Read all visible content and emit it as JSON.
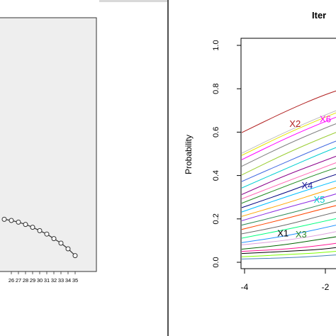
{
  "chart_data": [
    {
      "type": "line",
      "panel": "left",
      "title": "",
      "xlabel": "",
      "ylabel": "",
      "grid": false,
      "background": "#eeeeee",
      "x_tick_labels": [
        "26",
        "27",
        "28",
        "29",
        "30",
        "31",
        "32",
        "33",
        "34",
        "35"
      ],
      "series": [
        {
          "color": "#333333",
          "marker": "open-circle",
          "x": [
            25,
            26,
            27,
            28,
            29,
            30,
            31,
            32,
            33,
            34,
            35
          ],
          "y": [
            0.92,
            0.9,
            0.87,
            0.83,
            0.78,
            0.72,
            0.66,
            0.58,
            0.5,
            0.4,
            0.28
          ]
        }
      ]
    },
    {
      "type": "line",
      "panel": "right",
      "title": "Iter",
      "xlabel": "",
      "ylabel": "Probability",
      "xlim": [
        -4.3,
        0
      ],
      "ylim": [
        -0.02,
        1.05
      ],
      "x_ticks": [
        -4,
        -2
      ],
      "y_ticks": [
        "0.0",
        "0.2",
        "0.4",
        "0.6",
        "0.8",
        "1.0"
      ],
      "grid": false,
      "series_colors": [
        "#b22222",
        "#e6e600",
        "#c0c0c0",
        "#ff00ff",
        "#808080",
        "#9acd32",
        "#4169e1",
        "#00ced1",
        "#8b008b",
        "#ff69b4",
        "#228b22",
        "#000080",
        "#00bfff",
        "#ffa500",
        "#8a2be2",
        "#2e8b57",
        "#ff4500",
        "#696969",
        "#00ff7f",
        "#1e90ff",
        "#dda0dd",
        "#006400",
        "#ff1493",
        "#000000",
        "#7fff00",
        "#4682b4"
      ],
      "series": [
        {
          "x": [
            -4.1,
            -3,
            -2,
            -1.3
          ],
          "y": [
            0.595,
            0.695,
            0.775,
            0.815
          ]
        },
        {
          "x": [
            -4.1,
            -3,
            -2,
            -1.3
          ],
          "y": [
            0.49,
            0.59,
            0.67,
            0.72
          ]
        },
        {
          "x": [
            -4.1,
            -3,
            -2,
            -1.3
          ],
          "y": [
            0.5,
            0.6,
            0.68,
            0.73
          ]
        },
        {
          "x": [
            -4.1,
            -3,
            -2,
            -1.3
          ],
          "y": [
            0.47,
            0.57,
            0.65,
            0.7
          ]
        },
        {
          "x": [
            -4.1,
            -3,
            -2,
            -1.3
          ],
          "y": [
            0.44,
            0.54,
            0.62,
            0.67
          ]
        },
        {
          "x": [
            -4.1,
            -3,
            -2,
            -1.3
          ],
          "y": [
            0.4,
            0.5,
            0.58,
            0.63
          ]
        },
        {
          "x": [
            -4.1,
            -3,
            -2,
            -1.3
          ],
          "y": [
            0.37,
            0.46,
            0.54,
            0.59
          ]
        },
        {
          "x": [
            -4.1,
            -3,
            -2,
            -1.3
          ],
          "y": [
            0.34,
            0.43,
            0.51,
            0.56
          ]
        },
        {
          "x": [
            -4.1,
            -3,
            -2,
            -1.3
          ],
          "y": [
            0.31,
            0.4,
            0.47,
            0.52
          ]
        },
        {
          "x": [
            -4.1,
            -3,
            -2,
            -1.3
          ],
          "y": [
            0.29,
            0.37,
            0.44,
            0.49
          ]
        },
        {
          "x": [
            -4.1,
            -3,
            -2,
            -1.3
          ],
          "y": [
            0.27,
            0.35,
            0.42,
            0.46
          ]
        },
        {
          "x": [
            -4.1,
            -3,
            -2,
            -1.3
          ],
          "y": [
            0.25,
            0.32,
            0.39,
            0.43
          ]
        },
        {
          "x": [
            -4.1,
            -3,
            -2,
            -1.3
          ],
          "y": [
            0.23,
            0.3,
            0.36,
            0.4
          ]
        },
        {
          "x": [
            -4.1,
            -3,
            -2,
            -1.3
          ],
          "y": [
            0.21,
            0.27,
            0.33,
            0.37
          ]
        },
        {
          "x": [
            -4.1,
            -3,
            -2,
            -1.3
          ],
          "y": [
            0.19,
            0.25,
            0.3,
            0.34
          ]
        },
        {
          "x": [
            -4.1,
            -3,
            -2,
            -1.3
          ],
          "y": [
            0.17,
            0.22,
            0.27,
            0.31
          ]
        },
        {
          "x": [
            -4.1,
            -3,
            -2,
            -1.3
          ],
          "y": [
            0.15,
            0.2,
            0.25,
            0.28
          ]
        },
        {
          "x": [
            -4.1,
            -3,
            -2,
            -1.3
          ],
          "y": [
            0.13,
            0.17,
            0.22,
            0.25
          ]
        },
        {
          "x": [
            -4.1,
            -3,
            -2,
            -1.3
          ],
          "y": [
            0.11,
            0.15,
            0.19,
            0.22
          ]
        },
        {
          "x": [
            -4.1,
            -3,
            -2,
            -1.3
          ],
          "y": [
            0.09,
            0.12,
            0.16,
            0.19
          ]
        },
        {
          "x": [
            -4.1,
            -3,
            -2,
            -1.3
          ],
          "y": [
            0.08,
            0.1,
            0.13,
            0.16
          ]
        },
        {
          "x": [
            -4.1,
            -3,
            -2,
            -1.3
          ],
          "y": [
            0.06,
            0.08,
            0.11,
            0.13
          ]
        },
        {
          "x": [
            -4.1,
            -3,
            -2,
            -1.3
          ],
          "y": [
            0.05,
            0.06,
            0.08,
            0.1
          ]
        },
        {
          "x": [
            -4.1,
            -3,
            -2,
            -1.3
          ],
          "y": [
            0.04,
            0.05,
            0.06,
            0.08
          ]
        },
        {
          "x": [
            -4.1,
            -3,
            -2,
            -1.3
          ],
          "y": [
            0.025,
            0.035,
            0.045,
            0.06
          ]
        },
        {
          "x": [
            -4.1,
            -3,
            -2,
            -1.3
          ],
          "y": [
            0.015,
            0.02,
            0.03,
            0.04
          ]
        }
      ],
      "annotations": [
        {
          "text": "X2",
          "x": -2.75,
          "y": 0.625,
          "color": "#b22222"
        },
        {
          "text": "X6",
          "x": -2.0,
          "y": 0.645,
          "color": "#ff00ff"
        },
        {
          "text": "X4",
          "x": -2.45,
          "y": 0.34,
          "color": "#1f1f9f"
        },
        {
          "text": "X5",
          "x": -2.15,
          "y": 0.275,
          "color": "#00ced1"
        },
        {
          "text": "X1",
          "x": -3.05,
          "y": 0.12,
          "color": "#000000"
        },
        {
          "text": "X3",
          "x": -2.6,
          "y": 0.115,
          "color": "#2e8b2e"
        }
      ]
    }
  ]
}
